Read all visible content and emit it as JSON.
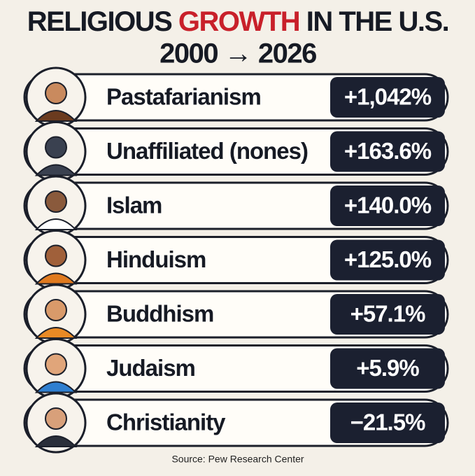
{
  "title": {
    "part1": "RELIGIOUS",
    "highlight": "GROWTH",
    "part2": "IN THE U.S."
  },
  "subtitle": "2000 → 2026",
  "rows": [
    {
      "name": "Pastafarianism",
      "value": "+1,042%"
    },
    {
      "name": "Unaffiliated (nones)",
      "value": "+163.6%"
    },
    {
      "name": "Islam",
      "value": "+140.0%"
    },
    {
      "name": "Hinduism",
      "value": "+125.0%"
    },
    {
      "name": "Buddhism",
      "value": "+57.1%"
    },
    {
      "name": "Judaism",
      "value": "+5.9%"
    },
    {
      "name": "Christianity",
      "value": "−21.5%"
    }
  ],
  "source": "Source: Pew Research Center"
}
